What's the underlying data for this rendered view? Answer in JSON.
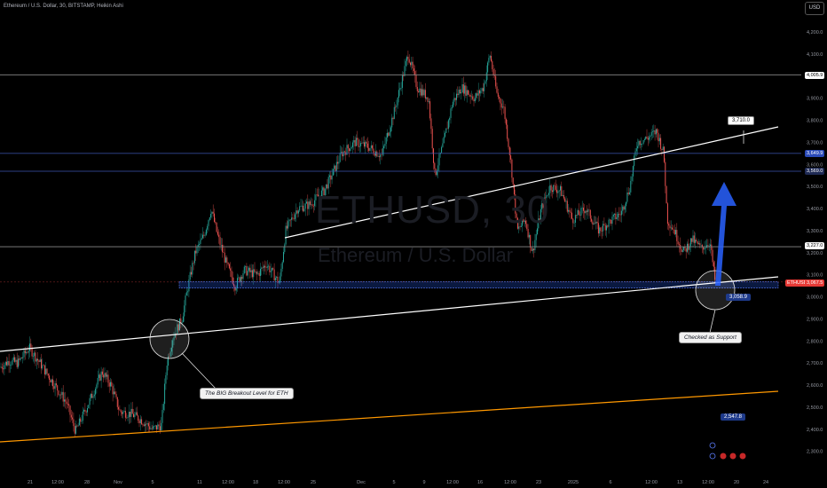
{
  "header": {
    "title": "Ethereum / U.S. Dollar, 30, BITSTAMP, Heikin Ashi",
    "currency_button": "USD"
  },
  "watermark": {
    "symbol": "ETHUSD, 30",
    "name": "Ethereum / U.S. Dollar"
  },
  "price_axis": {
    "ticks": [
      "4,200.0",
      "4,100.0",
      "4,000.0",
      "3,900.0",
      "3,800.0",
      "3,700.0",
      "3,600.0",
      "3,500.0",
      "3,400.0",
      "3,300.0",
      "3,200.0",
      "3,100.0",
      "3,000.0",
      "2,900.0",
      "2,800.0",
      "2,700.0",
      "2,600.0",
      "2,500.0",
      "2,400.0",
      "2,300.0"
    ],
    "tags": {
      "level_4005": "4,005.9",
      "level_3649": "3,649.9",
      "level_3569": "3,569.0",
      "level_3227": "3,227.0",
      "symbol": "ETHUSD",
      "last_price": "3,067.5"
    }
  },
  "time_axis": {
    "labels": [
      "21",
      "12:00",
      "28",
      "Nov",
      "5",
      "11",
      "12:00",
      "18",
      "12:00",
      "25",
      "Dec",
      "5",
      "9",
      "12:00",
      "16",
      "12:00",
      "23",
      "2025",
      "6",
      "12:00",
      "13",
      "12:00",
      "20",
      "24"
    ]
  },
  "annotations": {
    "breakout_callout": "The BIG Breakout Level for ETH",
    "support_callout": "Checked as Support",
    "badge_3710": "3,710.0",
    "badge_3058": "3,058.9",
    "badge_2547": "2,547.8"
  },
  "colors": {
    "background": "#000000",
    "candle_up": "#26a69a",
    "candle_down": "#ef5350",
    "trendline": "#ffffff",
    "support_band": "#2962ff",
    "orange_line": "#ff9800",
    "arrow": "#2962ff"
  },
  "chart_data": {
    "type": "candlestick",
    "title": "Ethereum / U.S. Dollar, 30, BITSTAMP, Heikin Ashi",
    "ylim": [
      2250,
      4300
    ],
    "horizontal_levels": [
      4005.9,
      3649.9,
      3569.0,
      3227.0,
      3067.5
    ],
    "support_zone": [
      3040,
      3068
    ],
    "price_path": [
      [
        0,
        2680
      ],
      [
        10,
        2710
      ],
      [
        20,
        2700
      ],
      [
        33,
        2770
      ],
      [
        45,
        2700
      ],
      [
        60,
        2610
      ],
      [
        75,
        2520
      ],
      [
        85,
        2390
      ],
      [
        100,
        2520
      ],
      [
        115,
        2660
      ],
      [
        125,
        2600
      ],
      [
        135,
        2480
      ],
      [
        148,
        2470
      ],
      [
        160,
        2440
      ],
      [
        172,
        2400
      ],
      [
        182,
        2420
      ],
      [
        188,
        2700
      ],
      [
        195,
        2820
      ],
      [
        205,
        2900
      ],
      [
        212,
        3050
      ],
      [
        220,
        3200
      ],
      [
        230,
        3280
      ],
      [
        238,
        3400
      ],
      [
        245,
        3280
      ],
      [
        255,
        3150
      ],
      [
        265,
        3050
      ],
      [
        275,
        3120
      ],
      [
        290,
        3100
      ],
      [
        300,
        3150
      ],
      [
        315,
        3060
      ],
      [
        322,
        3300
      ],
      [
        335,
        3400
      ],
      [
        350,
        3420
      ],
      [
        365,
        3480
      ],
      [
        375,
        3560
      ],
      [
        385,
        3650
      ],
      [
        400,
        3700
      ],
      [
        415,
        3680
      ],
      [
        430,
        3640
      ],
      [
        445,
        3850
      ],
      [
        460,
        4100
      ],
      [
        470,
        3950
      ],
      [
        483,
        3900
      ],
      [
        490,
        3550
      ],
      [
        500,
        3700
      ],
      [
        510,
        3880
      ],
      [
        520,
        3950
      ],
      [
        535,
        3900
      ],
      [
        545,
        3950
      ],
      [
        552,
        4100
      ],
      [
        560,
        3920
      ],
      [
        568,
        3850
      ],
      [
        576,
        3600
      ],
      [
        583,
        3300
      ],
      [
        592,
        3350
      ],
      [
        600,
        3200
      ],
      [
        610,
        3400
      ],
      [
        620,
        3500
      ],
      [
        632,
        3480
      ],
      [
        645,
        3350
      ],
      [
        660,
        3400
      ],
      [
        675,
        3300
      ],
      [
        690,
        3350
      ],
      [
        700,
        3380
      ],
      [
        710,
        3500
      ],
      [
        718,
        3700
      ],
      [
        730,
        3720
      ],
      [
        740,
        3750
      ],
      [
        748,
        3650
      ],
      [
        752,
        3350
      ],
      [
        760,
        3300
      ],
      [
        770,
        3200
      ],
      [
        780,
        3260
      ],
      [
        790,
        3220
      ],
      [
        800,
        3250
      ],
      [
        806,
        3067
      ]
    ]
  }
}
